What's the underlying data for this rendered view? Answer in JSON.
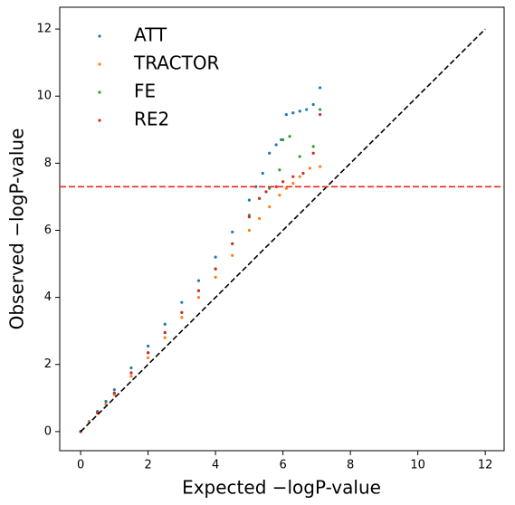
{
  "chart_data": {
    "type": "scatter",
    "x_label": "Expected −logP-value",
    "y_label": "Observed −logP-value",
    "xlim": [
      -0.62,
      12.56
    ],
    "ylim": [
      -0.57,
      12.65
    ],
    "xticks": [
      0,
      2,
      4,
      6,
      8,
      10,
      12
    ],
    "yticks": [
      0,
      2,
      4,
      6,
      8,
      10,
      12
    ],
    "grid": false,
    "legend": "upper left",
    "diagonal": [
      0,
      12
    ],
    "diagonal_color": "#000000",
    "hline": 7.3,
    "hline_color": "#e8281e",
    "series": [
      {
        "name": "ATT",
        "color": "#1f77b4",
        "x": [
          0,
          0.25,
          0.5,
          0.75,
          1,
          1.5,
          2,
          2.5,
          3,
          3.5,
          4,
          4.5,
          5,
          5.2,
          5.4,
          5.6,
          5.8,
          5.95,
          6.1,
          6.3,
          6.5,
          6.7,
          6.9,
          7.1
        ],
        "y": [
          0,
          0.3,
          0.6,
          0.9,
          1.25,
          1.9,
          2.55,
          3.2,
          3.85,
          4.5,
          5.2,
          5.95,
          6.9,
          7.3,
          7.7,
          8.3,
          8.55,
          8.7,
          9.45,
          9.5,
          9.55,
          9.6,
          9.75,
          10.25
        ]
      },
      {
        "name": "TRACTOR",
        "color": "#ff7f0e",
        "x": [
          0,
          0.25,
          0.5,
          0.75,
          1,
          1.5,
          2,
          2.5,
          3,
          3.5,
          4,
          4.5,
          5,
          5.3,
          5.6,
          5.9,
          6.1,
          6.3,
          6.5,
          6.8,
          7.1
        ],
        "y": [
          0,
          0.28,
          0.55,
          0.82,
          1.1,
          1.65,
          2.2,
          2.8,
          3.4,
          4.0,
          4.6,
          5.25,
          6.0,
          6.35,
          6.7,
          7.05,
          7.25,
          7.4,
          7.6,
          7.85,
          7.9
        ]
      },
      {
        "name": "FE",
        "color": "#2ca02c",
        "x": [
          0,
          0.5,
          1,
          1.5,
          2,
          2.5,
          3,
          3.5,
          4,
          4.5,
          5,
          5.3,
          5.6,
          5.9,
          6.0,
          6.2,
          6.5,
          6.9,
          7.1
        ],
        "y": [
          0,
          0.57,
          1.15,
          1.75,
          2.35,
          2.95,
          3.55,
          4.2,
          4.85,
          5.6,
          6.45,
          6.95,
          7.25,
          7.8,
          8.7,
          8.8,
          8.2,
          8.5,
          9.6
        ]
      },
      {
        "name": "RE2",
        "color": "#d62728",
        "x": [
          0,
          0.5,
          1,
          1.5,
          2,
          2.5,
          3,
          3.5,
          4,
          4.5,
          5,
          5.3,
          5.5,
          5.8,
          6.0,
          6.3,
          6.6,
          6.9,
          7.1
        ],
        "y": [
          0,
          0.57,
          1.15,
          1.75,
          2.35,
          2.95,
          3.55,
          4.2,
          4.85,
          5.6,
          6.4,
          6.95,
          7.15,
          7.3,
          7.45,
          7.6,
          7.7,
          8.3,
          9.45
        ]
      }
    ]
  }
}
